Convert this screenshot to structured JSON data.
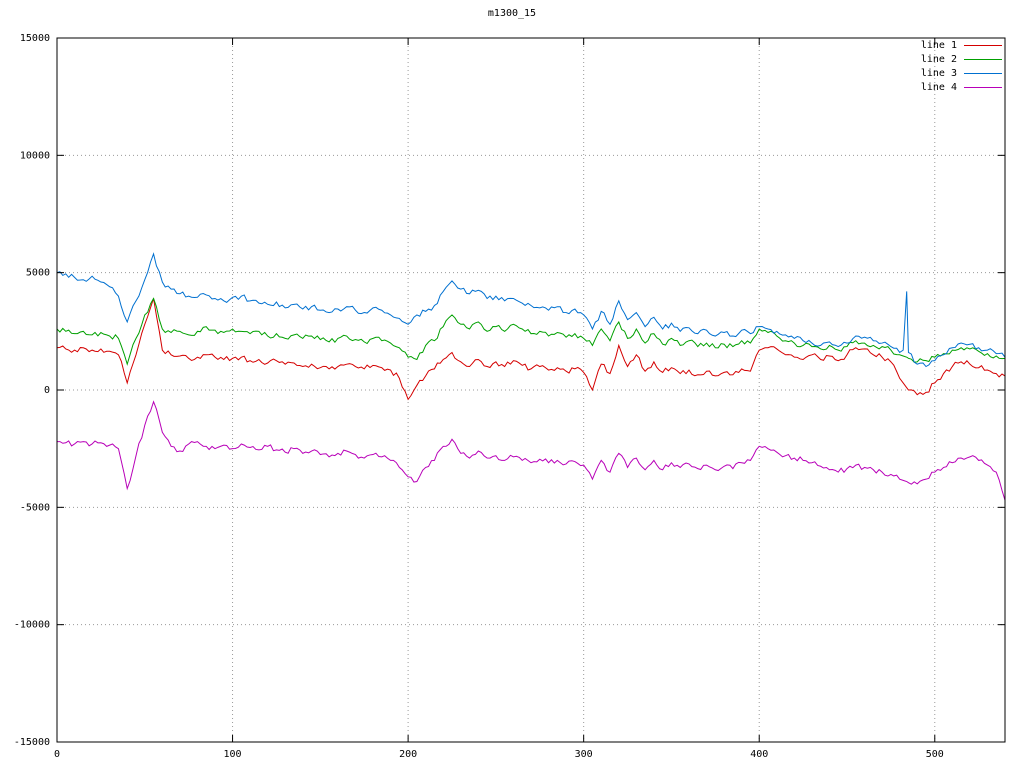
{
  "title": "m1300_15",
  "chart_data": {
    "type": "line",
    "title": "m1300_15",
    "xlabel": "",
    "ylabel": "",
    "xlim": [
      0,
      540
    ],
    "ylim": [
      -15000,
      15000
    ],
    "xticks": [
      0,
      100,
      200,
      300,
      400,
      500
    ],
    "yticks": [
      -15000,
      -10000,
      -5000,
      0,
      5000,
      10000,
      15000
    ],
    "grid": "dotted",
    "grid_color": "#9a9a9a",
    "axis_color": "#000000",
    "background": "#ffffff",
    "legend_position": "top-right",
    "jitter": 120,
    "x": [
      0,
      5,
      10,
      15,
      20,
      25,
      30,
      35,
      40,
      45,
      50,
      55,
      60,
      65,
      70,
      75,
      80,
      85,
      90,
      95,
      100,
      105,
      110,
      115,
      120,
      125,
      130,
      135,
      140,
      145,
      150,
      155,
      160,
      165,
      170,
      175,
      180,
      185,
      190,
      195,
      200,
      205,
      210,
      215,
      220,
      225,
      230,
      235,
      240,
      245,
      250,
      255,
      260,
      265,
      270,
      275,
      280,
      285,
      290,
      295,
      300,
      305,
      310,
      315,
      320,
      325,
      330,
      335,
      340,
      345,
      350,
      355,
      360,
      365,
      370,
      375,
      380,
      385,
      390,
      395,
      400,
      405,
      410,
      415,
      420,
      425,
      430,
      435,
      440,
      445,
      450,
      455,
      460,
      465,
      470,
      475,
      480,
      482,
      484,
      485,
      490,
      495,
      500,
      505,
      510,
      515,
      520,
      525,
      530,
      535,
      540
    ],
    "series": [
      {
        "name": "line 1",
        "color": "#d40000",
        "values": [
          1800,
          1750,
          1700,
          1800,
          1700,
          1750,
          1650,
          1500,
          300,
          1500,
          2800,
          3900,
          1700,
          1500,
          1450,
          1350,
          1400,
          1500,
          1400,
          1300,
          1350,
          1400,
          1250,
          1300,
          1150,
          1250,
          1100,
          1150,
          1000,
          1100,
          950,
          900,
          1000,
          1100,
          1000,
          900,
          1050,
          950,
          850,
          500,
          -400,
          200,
          600,
          900,
          1300,
          1600,
          1200,
          1000,
          1300,
          1000,
          1200,
          1000,
          1250,
          1050,
          900,
          1000,
          850,
          950,
          800,
          900,
          750,
          0,
          1100,
          700,
          1900,
          1000,
          1500,
          800,
          1200,
          750,
          950,
          700,
          850,
          650,
          800,
          600,
          750,
          650,
          900,
          800,
          1700,
          1800,
          1750,
          1500,
          1400,
          1300,
          1500,
          1300,
          1450,
          1250,
          1500,
          1800,
          1750,
          1500,
          1400,
          1200,
          500,
          300,
          100,
          0,
          -200,
          -100,
          300,
          700,
          1000,
          1200,
          1100,
          950,
          850,
          700,
          600
        ]
      },
      {
        "name": "line 2",
        "color": "#00a000",
        "values": [
          2600,
          2500,
          2400,
          2500,
          2350,
          2450,
          2300,
          2200,
          1100,
          2200,
          3200,
          3900,
          2600,
          2450,
          2500,
          2350,
          2500,
          2700,
          2550,
          2450,
          2600,
          2500,
          2400,
          2500,
          2300,
          2400,
          2200,
          2350,
          2200,
          2300,
          2150,
          2050,
          2200,
          2300,
          2150,
          2050,
          2200,
          2100,
          2000,
          1800,
          1400,
          1300,
          1900,
          2100,
          2700,
          3200,
          2800,
          2600,
          2900,
          2500,
          2700,
          2500,
          2800,
          2600,
          2400,
          2500,
          2300,
          2450,
          2250,
          2400,
          2200,
          1900,
          2600,
          2100,
          2900,
          2200,
          2600,
          2000,
          2400,
          1950,
          2200,
          1900,
          2100,
          1850,
          2000,
          1800,
          1950,
          1850,
          2100,
          2000,
          2600,
          2450,
          2300,
          2100,
          2000,
          1900,
          1850,
          1750,
          1900,
          1700,
          1850,
          2100,
          2000,
          1900,
          1850,
          1700,
          1500,
          1450,
          1400,
          1350,
          1200,
          1250,
          1400,
          1550,
          1700,
          1800,
          1750,
          1650,
          1550,
          1450,
          1350
        ]
      },
      {
        "name": "line 3",
        "color": "#0070d0",
        "values": [
          5000,
          4950,
          4800,
          4700,
          4850,
          4600,
          4400,
          4000,
          2900,
          3800,
          4700,
          5800,
          4600,
          4300,
          4100,
          4000,
          3950,
          4050,
          3900,
          3800,
          3950,
          4000,
          3800,
          3700,
          3650,
          3750,
          3500,
          3650,
          3450,
          3550,
          3400,
          3300,
          3450,
          3550,
          3400,
          3300,
          3500,
          3400,
          3200,
          3050,
          2800,
          3200,
          3350,
          3600,
          4200,
          4650,
          4300,
          4100,
          4250,
          3900,
          4000,
          3800,
          3900,
          3700,
          3600,
          3500,
          3400,
          3550,
          3300,
          3450,
          3200,
          2600,
          3350,
          2800,
          3800,
          3000,
          3300,
          2700,
          3100,
          2600,
          2850,
          2500,
          2650,
          2400,
          2550,
          2300,
          2450,
          2300,
          2550,
          2400,
          2700,
          2600,
          2500,
          2350,
          2200,
          2100,
          2000,
          1900,
          2050,
          1850,
          2000,
          2300,
          2250,
          2100,
          2000,
          1850,
          1600,
          1700,
          4200,
          1600,
          1100,
          1000,
          1250,
          1500,
          1800,
          2000,
          1950,
          1800,
          1700,
          1550,
          1400
        ]
      },
      {
        "name": "line 4",
        "color": "#b800b8",
        "values": [
          -2200,
          -2250,
          -2300,
          -2200,
          -2300,
          -2250,
          -2350,
          -2500,
          -4200,
          -2800,
          -1500,
          -500,
          -1800,
          -2400,
          -2600,
          -2300,
          -2200,
          -2400,
          -2500,
          -2350,
          -2500,
          -2300,
          -2450,
          -2550,
          -2400,
          -2550,
          -2650,
          -2500,
          -2700,
          -2600,
          -2750,
          -2850,
          -2700,
          -2600,
          -2750,
          -2900,
          -2750,
          -2850,
          -3000,
          -3300,
          -3700,
          -3900,
          -3300,
          -3000,
          -2400,
          -2100,
          -2700,
          -2900,
          -2600,
          -2900,
          -2800,
          -3000,
          -2850,
          -3000,
          -3100,
          -2950,
          -3100,
          -3000,
          -3150,
          -3050,
          -3200,
          -3800,
          -3000,
          -3500,
          -2700,
          -3300,
          -2900,
          -3400,
          -3000,
          -3400,
          -3100,
          -3300,
          -3150,
          -3350,
          -3200,
          -3400,
          -3250,
          -3350,
          -3100,
          -3000,
          -2400,
          -2500,
          -2650,
          -2800,
          -2900,
          -3000,
          -3100,
          -3250,
          -3400,
          -3500,
          -3350,
          -3200,
          -3300,
          -3400,
          -3500,
          -3600,
          -3800,
          -3850,
          -3900,
          -3950,
          -4000,
          -3800,
          -3500,
          -3300,
          -3100,
          -2900,
          -2850,
          -3000,
          -3200,
          -3500,
          -4700
        ]
      }
    ]
  }
}
